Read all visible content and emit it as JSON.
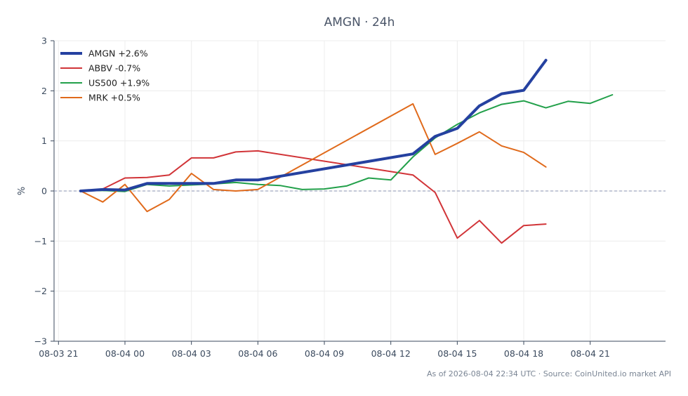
{
  "chart_data": {
    "type": "line",
    "title": "AMGN · 24h",
    "xlabel": "",
    "ylabel": "%",
    "xlim": [
      "2026-08-03T20:48",
      "2026-08-05T00:24"
    ],
    "ylim": [
      -3,
      3
    ],
    "x_ticks": [
      {
        "t": "2026-08-03T21:00",
        "label": "08-03 21"
      },
      {
        "t": "2026-08-04T00:00",
        "label": "08-04 00"
      },
      {
        "t": "2026-08-04T03:00",
        "label": "08-04 03"
      },
      {
        "t": "2026-08-04T06:00",
        "label": "08-04 06"
      },
      {
        "t": "2026-08-04T09:00",
        "label": "08-04 09"
      },
      {
        "t": "2026-08-04T12:00",
        "label": "08-04 12"
      },
      {
        "t": "2026-08-04T15:00",
        "label": "08-04 15"
      },
      {
        "t": "2026-08-04T18:00",
        "label": "08-04 18"
      },
      {
        "t": "2026-08-04T21:00",
        "label": "08-04 21"
      }
    ],
    "y_ticks": [
      3,
      2,
      1,
      0,
      -1,
      -2,
      -3
    ],
    "y_tick_labels": [
      "3",
      "2",
      "1",
      "0",
      "−1",
      "−2",
      "−3"
    ],
    "grid": true,
    "zero_line": true,
    "legend_position": "top-left",
    "series": [
      {
        "name": "AMGN +2.6%",
        "color": "#2541a0",
        "emphasis": true,
        "points": [
          [
            "2026-08-03T22:00",
            0.0
          ],
          [
            "2026-08-03T23:00",
            0.03
          ],
          [
            "2026-08-04T00:00",
            0.02
          ],
          [
            "2026-08-04T01:00",
            0.15
          ],
          [
            "2026-08-04T02:00",
            0.15
          ],
          [
            "2026-08-04T03:00",
            0.15
          ],
          [
            "2026-08-04T04:00",
            0.15
          ],
          [
            "2026-08-04T05:00",
            0.22
          ],
          [
            "2026-08-04T06:00",
            0.22
          ],
          [
            "2026-08-04T13:00",
            0.74
          ],
          [
            "2026-08-04T14:00",
            1.09
          ],
          [
            "2026-08-04T15:00",
            1.25
          ],
          [
            "2026-08-04T16:00",
            1.7
          ],
          [
            "2026-08-04T17:00",
            1.94
          ],
          [
            "2026-08-04T18:00",
            2.01
          ],
          [
            "2026-08-04T19:00",
            2.61
          ]
        ]
      },
      {
        "name": "ABBV -0.7%",
        "color": "#d13438",
        "emphasis": false,
        "points": [
          [
            "2026-08-03T22:00",
            0.0
          ],
          [
            "2026-08-03T23:00",
            0.04
          ],
          [
            "2026-08-04T00:00",
            0.26
          ],
          [
            "2026-08-04T01:00",
            0.27
          ],
          [
            "2026-08-04T02:00",
            0.32
          ],
          [
            "2026-08-04T03:00",
            0.66
          ],
          [
            "2026-08-04T04:00",
            0.66
          ],
          [
            "2026-08-04T05:00",
            0.78
          ],
          [
            "2026-08-04T06:00",
            0.8
          ],
          [
            "2026-08-04T13:00",
            0.32
          ],
          [
            "2026-08-04T14:00",
            -0.03
          ],
          [
            "2026-08-04T15:00",
            -0.94
          ],
          [
            "2026-08-04T16:00",
            -0.59
          ],
          [
            "2026-08-04T17:00",
            -1.04
          ],
          [
            "2026-08-04T18:00",
            -0.69
          ],
          [
            "2026-08-04T19:00",
            -0.66
          ]
        ]
      },
      {
        "name": "US500 +1.9%",
        "color": "#22a04a",
        "emphasis": false,
        "points": [
          [
            "2026-08-03T22:00",
            0.0
          ],
          [
            "2026-08-03T23:00",
            0.01
          ],
          [
            "2026-08-04T00:00",
            -0.01
          ],
          [
            "2026-08-04T01:00",
            0.13
          ],
          [
            "2026-08-04T02:00",
            0.1
          ],
          [
            "2026-08-04T03:00",
            0.12
          ],
          [
            "2026-08-04T04:00",
            0.14
          ],
          [
            "2026-08-04T05:00",
            0.17
          ],
          [
            "2026-08-04T06:00",
            0.13
          ],
          [
            "2026-08-04T07:00",
            0.11
          ],
          [
            "2026-08-04T08:00",
            0.03
          ],
          [
            "2026-08-04T09:00",
            0.04
          ],
          [
            "2026-08-04T10:00",
            0.1
          ],
          [
            "2026-08-04T11:00",
            0.26
          ],
          [
            "2026-08-04T12:00",
            0.22
          ],
          [
            "2026-08-04T13:00",
            0.68
          ],
          [
            "2026-08-04T14:00",
            1.06
          ],
          [
            "2026-08-04T15:00",
            1.33
          ],
          [
            "2026-08-04T16:00",
            1.56
          ],
          [
            "2026-08-04T17:00",
            1.73
          ],
          [
            "2026-08-04T18:00",
            1.8
          ],
          [
            "2026-08-04T19:00",
            1.66
          ],
          [
            "2026-08-04T20:00",
            1.79
          ],
          [
            "2026-08-04T21:00",
            1.75
          ],
          [
            "2026-08-04T22:00",
            1.92
          ]
        ]
      },
      {
        "name": "MRK +0.5%",
        "color": "#e06a1b",
        "emphasis": false,
        "points": [
          [
            "2026-08-03T22:00",
            0.0
          ],
          [
            "2026-08-03T23:00",
            -0.22
          ],
          [
            "2026-08-04T00:00",
            0.13
          ],
          [
            "2026-08-04T01:00",
            -0.41
          ],
          [
            "2026-08-04T02:00",
            -0.17
          ],
          [
            "2026-08-04T03:00",
            0.35
          ],
          [
            "2026-08-04T04:00",
            0.03
          ],
          [
            "2026-08-04T05:00",
            0.0
          ],
          [
            "2026-08-04T06:00",
            0.03
          ],
          [
            "2026-08-04T13:00",
            1.74
          ],
          [
            "2026-08-04T14:00",
            0.73
          ],
          [
            "2026-08-04T15:00",
            0.95
          ],
          [
            "2026-08-04T16:00",
            1.18
          ],
          [
            "2026-08-04T17:00",
            0.9
          ],
          [
            "2026-08-04T18:00",
            0.77
          ],
          [
            "2026-08-04T19:00",
            0.48
          ]
        ]
      }
    ]
  },
  "footer": "As of 2026-08-04 22:34 UTC · Source: CoinUnited.io market API"
}
